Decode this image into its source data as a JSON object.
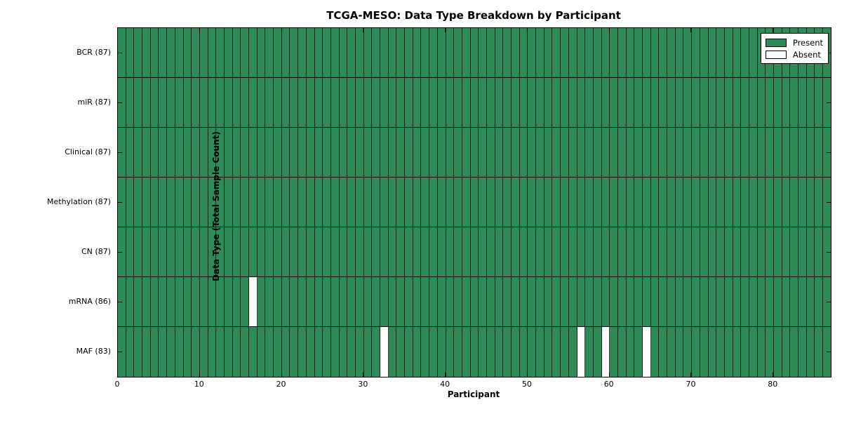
{
  "chart_data": {
    "type": "heatmap",
    "title": "TCGA-MESO: Data Type Breakdown by Participant",
    "xlabel": "Participant",
    "ylabel": "Data Type (Total Sample Count)",
    "n_participants": 87,
    "x_ticks": [
      0,
      10,
      20,
      30,
      40,
      50,
      60,
      70,
      80
    ],
    "rows": [
      {
        "label": "BCR (87)",
        "data_type": "BCR",
        "present_count": 87,
        "absent_participants": []
      },
      {
        "label": "miR (87)",
        "data_type": "miR",
        "present_count": 87,
        "absent_participants": []
      },
      {
        "label": "Clinical (87)",
        "data_type": "Clinical",
        "present_count": 87,
        "absent_participants": []
      },
      {
        "label": "Methylation (87)",
        "data_type": "Methylation",
        "present_count": 87,
        "absent_participants": []
      },
      {
        "label": "CN (87)",
        "data_type": "CN",
        "present_count": 87,
        "absent_participants": []
      },
      {
        "label": "mRNA (86)",
        "data_type": "mRNA",
        "present_count": 86,
        "absent_participants": [
          16
        ]
      },
      {
        "label": "MAF (83)",
        "data_type": "MAF",
        "present_count": 83,
        "absent_participants": [
          32,
          56,
          59,
          64
        ]
      }
    ],
    "legend": [
      {
        "label": "Present",
        "color": "#2e8b57"
      },
      {
        "label": "Absent",
        "color": "#ffffff"
      }
    ],
    "colors": {
      "present": "#2e8b57",
      "absent": "#ffffff",
      "grid_line": "#000000",
      "background": "#ffffff"
    },
    "layout": {
      "legend_position": "upper right",
      "grid": true
    }
  }
}
